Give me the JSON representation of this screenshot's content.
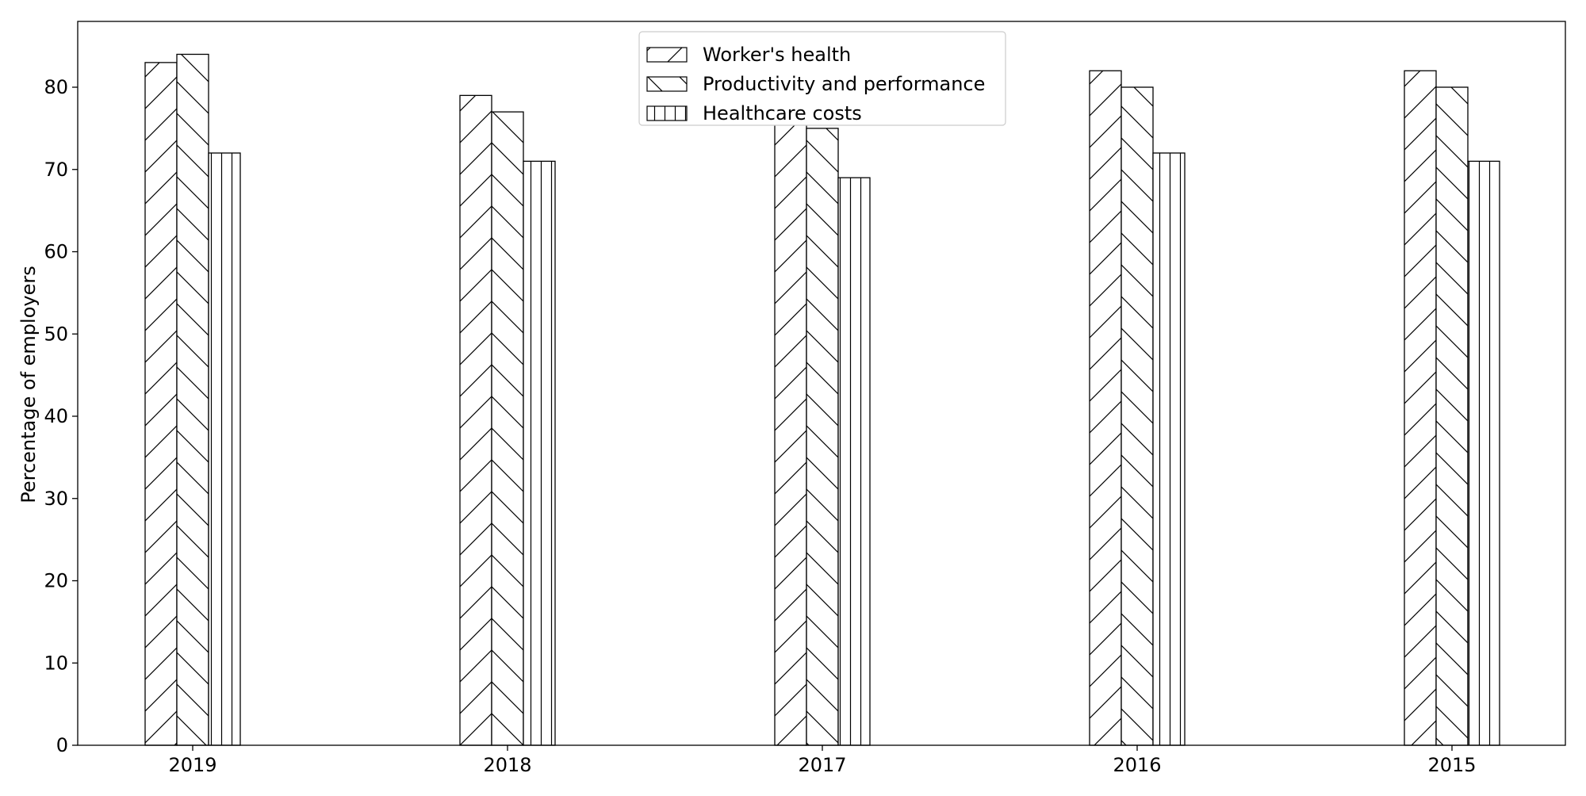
{
  "chart_data": {
    "type": "bar",
    "title": "",
    "xlabel": "",
    "ylabel": "Percentage of employers",
    "categories": [
      "2019",
      "2018",
      "2017",
      "2016",
      "2015"
    ],
    "series": [
      {
        "name": "Worker's health",
        "values": [
          83,
          79,
          77,
          82,
          82
        ],
        "hatch": "forward-diagonal"
      },
      {
        "name": "Productivity and performance",
        "values": [
          84,
          77,
          75,
          80,
          80
        ],
        "hatch": "back-diagonal"
      },
      {
        "name": "Healthcare costs",
        "values": [
          72,
          71,
          69,
          72,
          71
        ],
        "hatch": "vertical"
      }
    ],
    "ylim": [
      0,
      88
    ],
    "yticks": [
      0,
      10,
      20,
      30,
      40,
      50,
      60,
      70,
      80
    ],
    "grid": false,
    "legend_position": "top-center",
    "colors": {
      "bar_fill": "#ffffff",
      "edge": "#000000"
    }
  }
}
